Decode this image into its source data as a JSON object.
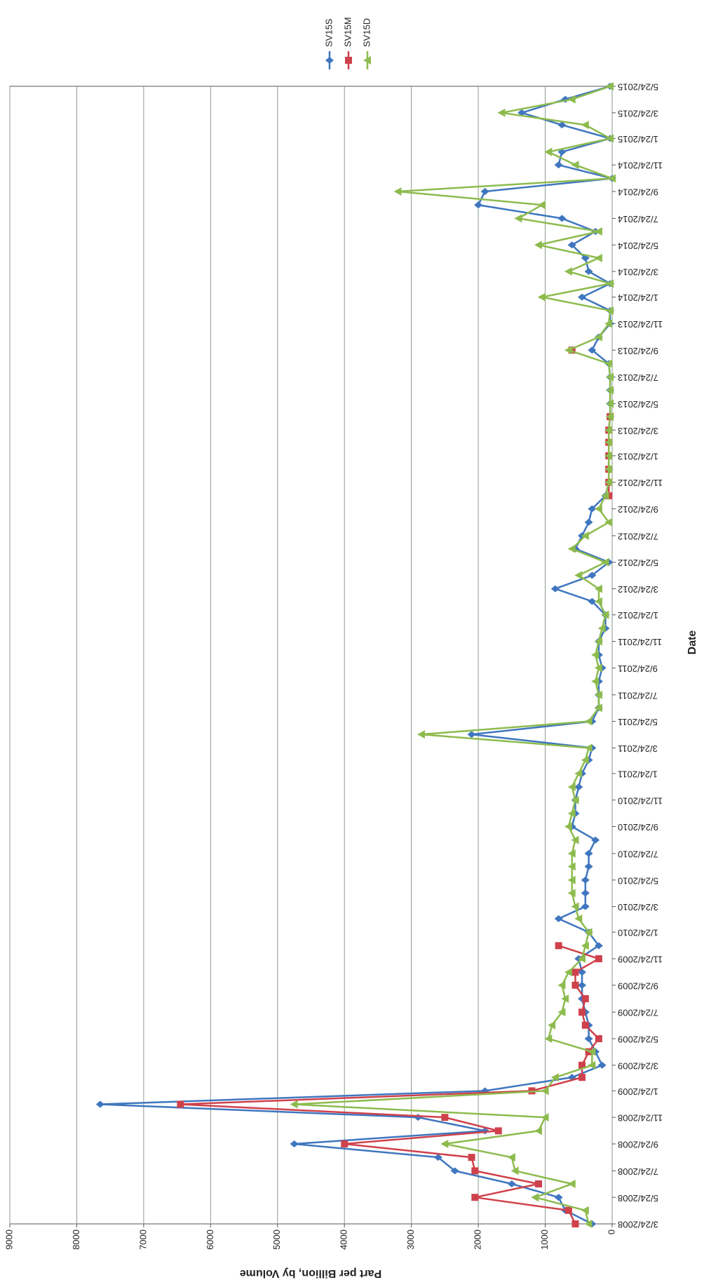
{
  "chart_data": {
    "type": "line",
    "x_title": "Date",
    "y_title": "Part per Billion, by Volume",
    "x": [
      "3/24/2008",
      "4/24/2008",
      "5/24/2008",
      "6/24/2008",
      "7/24/2008",
      "8/24/2008",
      "9/24/2008",
      "10/24/2008",
      "11/24/2008",
      "12/24/2008",
      "1/24/2009",
      "2/24/2009",
      "3/24/2009",
      "4/24/2009",
      "5/24/2009",
      "6/24/2009",
      "7/24/2009",
      "8/24/2009",
      "9/24/2009",
      "10/24/2009",
      "11/24/2009",
      "12/24/2009",
      "1/24/2010",
      "2/24/2010",
      "3/24/2010",
      "4/24/2010",
      "5/24/2010",
      "6/24/2010",
      "7/24/2010",
      "8/24/2010",
      "9/24/2010",
      "10/24/2010",
      "11/24/2010",
      "12/24/2010",
      "1/24/2011",
      "2/24/2011",
      "3/24/2011",
      "4/24/2011",
      "5/24/2011",
      "6/24/2011",
      "7/24/2011",
      "8/24/2011",
      "9/24/2011",
      "10/24/2011",
      "11/24/2011",
      "12/24/2011",
      "1/24/2012",
      "2/24/2012",
      "3/24/2012",
      "4/24/2012",
      "5/24/2012",
      "6/24/2012",
      "7/24/2012",
      "8/24/2012",
      "9/24/2012",
      "10/24/2012",
      "11/24/2012",
      "12/24/2012",
      "1/24/2013",
      "2/24/2013",
      "3/24/2013",
      "4/24/2013",
      "5/24/2013",
      "6/24/2013",
      "7/24/2013",
      "8/24/2013",
      "9/24/2013",
      "10/24/2013",
      "11/24/2013",
      "12/24/2013",
      "1/24/2014",
      "2/24/2014",
      "3/24/2014",
      "4/24/2014",
      "5/24/2014",
      "6/24/2014",
      "7/24/2014",
      "8/24/2014",
      "9/24/2014",
      "10/24/2014",
      "11/24/2014",
      "12/24/2014",
      "1/24/2015",
      "2/24/2015",
      "3/24/2015",
      "4/24/2015",
      "5/24/2015"
    ],
    "series": [
      {
        "name": "SV15S",
        "color": "#3f76bf",
        "marker": "diamond",
        "values": [
          300,
          700,
          800,
          1500,
          2350,
          2600,
          4750,
          1900,
          2900,
          7650,
          1900,
          600,
          150,
          250,
          350,
          350,
          400,
          450,
          450,
          450,
          500,
          200,
          350,
          800,
          400,
          400,
          400,
          350,
          350,
          250,
          600,
          550,
          550,
          500,
          450,
          350,
          300,
          2100,
          300,
          200,
          200,
          200,
          150,
          200,
          200,
          100,
          100,
          300,
          850,
          300,
          50,
          550,
          450,
          350,
          300,
          100,
          50,
          50,
          50,
          50,
          50,
          30,
          30,
          30,
          30,
          50,
          300,
          200,
          30,
          30,
          450,
          30,
          350,
          400,
          600,
          250,
          750,
          2000,
          1900,
          0,
          800,
          750,
          30,
          750,
          1350,
          700,
          30
        ]
      },
      {
        "name": "SV15M",
        "color": "#cf414b",
        "marker": "square",
        "values": [
          550,
          650,
          2050,
          1100,
          2050,
          2100,
          4000,
          1700,
          2500,
          6450,
          1200,
          450,
          450,
          350,
          200,
          400,
          450,
          400,
          550,
          550,
          200,
          800,
          null,
          null,
          null,
          null,
          null,
          null,
          null,
          null,
          null,
          null,
          null,
          null,
          null,
          null,
          null,
          null,
          null,
          null,
          null,
          null,
          null,
          null,
          null,
          null,
          null,
          null,
          null,
          null,
          null,
          null,
          null,
          null,
          null,
          50,
          50,
          50,
          50,
          50,
          50,
          30,
          null,
          null,
          null,
          null,
          600,
          null,
          null,
          null,
          null,
          null,
          null,
          null,
          null,
          null,
          null,
          null,
          null,
          null,
          null,
          null,
          null,
          null,
          null,
          null,
          null
        ]
      },
      {
        "name": "SV15D",
        "color": "#8dbb4e",
        "marker": "triangle",
        "values": [
          350,
          400,
          1150,
          600,
          1450,
          1500,
          2500,
          1100,
          1000,
          4750,
          1000,
          850,
          300,
          300,
          950,
          900,
          750,
          700,
          750,
          650,
          450,
          400,
          350,
          500,
          550,
          600,
          600,
          600,
          600,
          550,
          650,
          600,
          550,
          600,
          500,
          400,
          350,
          2850,
          350,
          200,
          200,
          250,
          200,
          250,
          200,
          150,
          100,
          200,
          200,
          500,
          100,
          600,
          400,
          50,
          200,
          100,
          50,
          50,
          50,
          50,
          50,
          30,
          30,
          30,
          30,
          50,
          650,
          200,
          50,
          30,
          1050,
          30,
          650,
          200,
          1100,
          200,
          1400,
          1050,
          3200,
          0,
          550,
          950,
          30,
          400,
          1650,
          600,
          30
        ]
      }
    ],
    "xlim": [
      "3/24/2008",
      "5/24/2015"
    ],
    "xticks": [
      "3/24/2008",
      "5/24/2008",
      "7/24/2008",
      "9/24/2008",
      "11/24/2008",
      "1/24/2009",
      "3/24/2009",
      "5/24/2009",
      "7/24/2009",
      "9/24/2009",
      "11/24/2009",
      "1/24/2010",
      "3/24/2010",
      "5/24/2010",
      "7/24/2010",
      "9/24/2010",
      "11/24/2010",
      "1/24/2011",
      "3/24/2011",
      "5/24/2011",
      "7/24/2011",
      "9/24/2011",
      "11/24/2011",
      "1/24/2012",
      "3/24/2012",
      "5/24/2012",
      "7/24/2012",
      "9/24/2012",
      "11/24/2012",
      "1/24/2013",
      "3/24/2013",
      "5/24/2013",
      "7/24/2013",
      "9/24/2013",
      "11/24/2013",
      "1/24/2014",
      "3/24/2014",
      "5/24/2014",
      "7/24/2014",
      "9/24/2014",
      "11/24/2014",
      "1/24/2015",
      "3/24/2015",
      "5/24/2015"
    ],
    "ylim": [
      0,
      9000
    ],
    "yticks": [
      0,
      1000,
      2000,
      3000,
      4000,
      5000,
      6000,
      7000,
      8000,
      9000
    ],
    "grid": true,
    "legend": "right"
  }
}
